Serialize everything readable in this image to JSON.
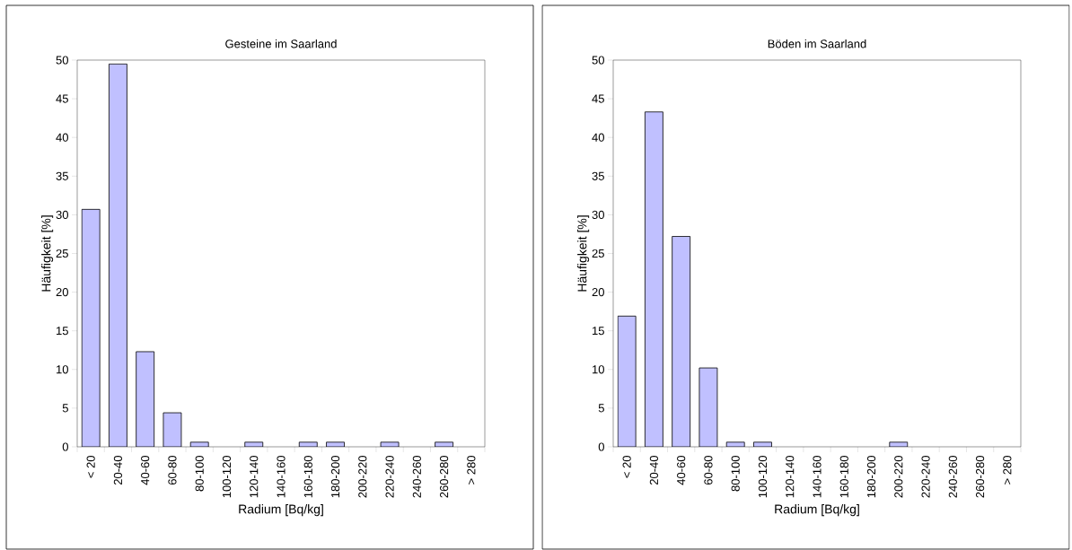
{
  "chart_data": [
    {
      "type": "bar",
      "title": "Gesteine im Saarland",
      "xlabel": "Radium [Bq/kg]",
      "ylabel": "Häufigkeit [%]",
      "categories": [
        "< 20",
        "20-40",
        "40-60",
        "60-80",
        "80-100",
        "100-120",
        "120-140",
        "140-160",
        "160-180",
        "180-200",
        "200-220",
        "220-240",
        "240-260",
        "260-280",
        "> 280"
      ],
      "values": [
        30.7,
        49.5,
        12.3,
        4.4,
        0.6,
        null,
        0.6,
        null,
        0.6,
        0.6,
        null,
        0.6,
        null,
        0.6,
        null
      ],
      "color": "#c0c0ff",
      "ylim": [
        0,
        50
      ],
      "yticks": [
        0,
        5,
        10,
        15,
        20,
        25,
        30,
        35,
        40,
        45,
        50
      ]
    },
    {
      "type": "bar",
      "title": "Böden im Saarland",
      "xlabel": "Radium [Bq/kg]",
      "ylabel": "Häufigkeit [%]",
      "categories": [
        "< 20",
        "20-40",
        "40-60",
        "60-80",
        "80-100",
        "100-120",
        "120-140",
        "140-160",
        "160-180",
        "180-200",
        "200-220",
        "220-240",
        "240-260",
        "260-280",
        "> 280"
      ],
      "values": [
        16.9,
        43.3,
        27.2,
        10.2,
        0.6,
        0.6,
        null,
        null,
        null,
        null,
        0.6,
        null,
        null,
        null,
        null
      ],
      "color": "#c0c0ff",
      "ylim": [
        0,
        50
      ],
      "yticks": [
        0,
        5,
        10,
        15,
        20,
        25,
        30,
        35,
        40,
        45,
        50
      ]
    }
  ]
}
